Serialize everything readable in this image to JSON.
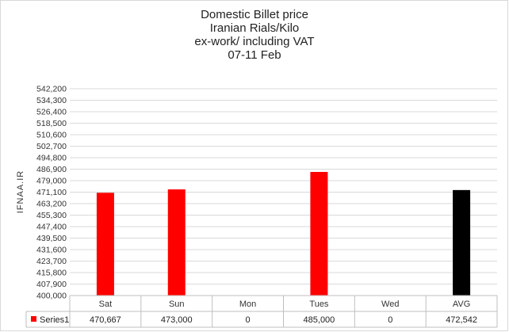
{
  "chart_data": {
    "type": "bar",
    "title_lines": [
      "Domestic Billet price",
      "Iranian Rials/Kilo",
      "ex-work/  including VAT",
      "07-11 Feb"
    ],
    "ylabel": "IFNAA.IR",
    "ylim": [
      400000,
      542200
    ],
    "y_ticks": [
      "542,200",
      "534,300",
      "526,400",
      "518,500",
      "510,600",
      "502,700",
      "494,800",
      "486,900",
      "479,000",
      "471,100",
      "463,200",
      "455,300",
      "447,400",
      "439,500",
      "431,600",
      "423,700",
      "415,800",
      "407,900",
      "400,000"
    ],
    "categories": [
      "Sat",
      "Sun",
      "Mon",
      "Tues",
      "Wed",
      "AVG"
    ],
    "series": [
      {
        "name": "Series1",
        "values": [
          470667,
          473000,
          0,
          485000,
          0,
          472542
        ],
        "value_labels": [
          "470,667",
          "473,000",
          "0",
          "485,000",
          "0",
          "472,542"
        ],
        "colors": [
          "#ff0000",
          "#ff0000",
          "#ff0000",
          "#ff0000",
          "#ff0000",
          "#000000"
        ]
      }
    ],
    "legend_color": "#ff0000",
    "grid": true,
    "data_table": true
  }
}
